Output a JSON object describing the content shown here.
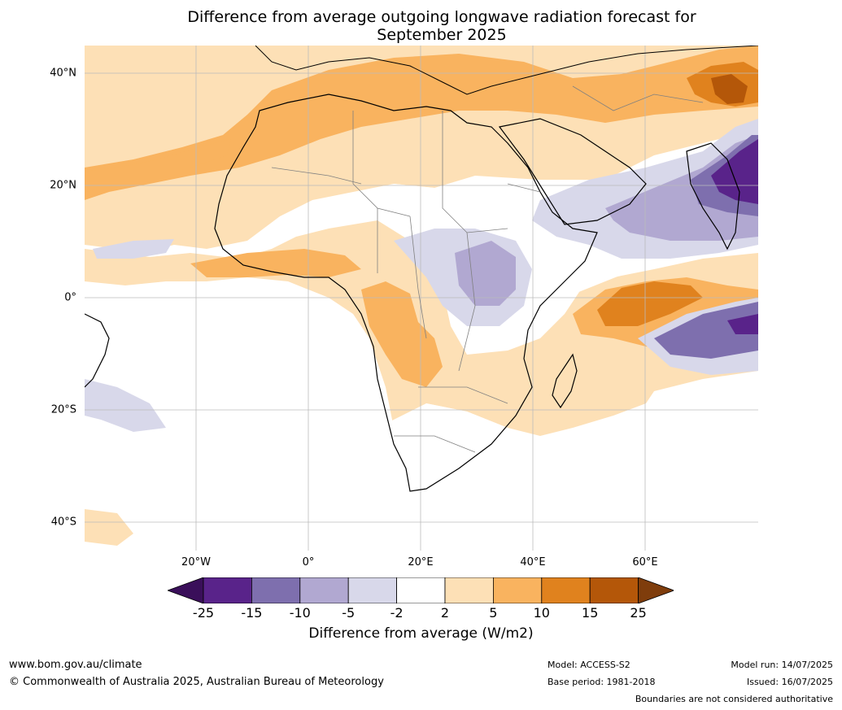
{
  "title_line1": "Difference from average outgoing longwave radiation forecast for",
  "title_line2": "September 2025",
  "map": {
    "region": "Africa",
    "lat_labels": [
      "40°N",
      "20°N",
      "0°",
      "20°S",
      "40°S"
    ],
    "lon_labels": [
      "20°W",
      "0°",
      "20°E",
      "40°E",
      "60°E"
    ]
  },
  "colorbar": {
    "ticks": [
      "-25",
      "-15",
      "-10",
      "-5",
      "-2",
      "2",
      "5",
      "10",
      "15",
      "25"
    ],
    "colors": [
      "#3a0f5a",
      "#59238a",
      "#7e6fae",
      "#b1a8d1",
      "#d8d8ea",
      "#ffffff",
      "#fde0b6",
      "#f9b35f",
      "#e0821e",
      "#b45709",
      "#7f3d0c"
    ],
    "label": "Difference from average (W/m2)"
  },
  "footer": {
    "website": "www.bom.gov.au/climate",
    "copyright": "© Commonwealth of Australia 2025, Australian Bureau of Meteorology",
    "model": "Model: ACCESS-S2",
    "base_period": "Base period: 1981-2018",
    "model_run": "Model run: 14/07/2025",
    "issued": "Issued: 16/07/2025",
    "disclaimer": "Boundaries are not considered authoritative"
  }
}
